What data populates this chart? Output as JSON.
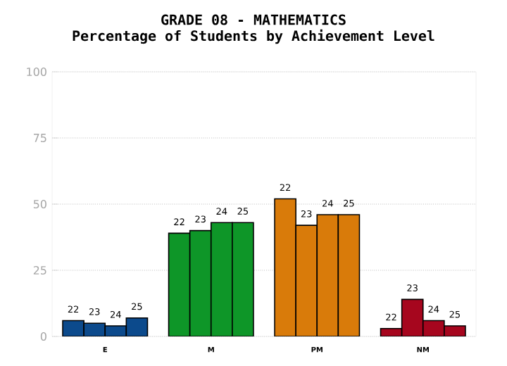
{
  "chart_data": {
    "type": "bar",
    "title": "GRADE 08 - MATHEMATICS",
    "subtitle": "Percentage of Students by Achievement Level",
    "categories": [
      "E",
      "M",
      "PM",
      "NM"
    ],
    "series": [
      {
        "name": "22",
        "colors": [
          "#0c4a8c",
          "#0e9628",
          "#d97b0a",
          "#a6061e"
        ],
        "values": [
          6,
          39,
          52,
          3
        ]
      },
      {
        "name": "23",
        "colors": [
          "#0c4a8c",
          "#0e9628",
          "#d97b0a",
          "#a6061e"
        ],
        "values": [
          5,
          40,
          42,
          14
        ]
      },
      {
        "name": "24",
        "colors": [
          "#0c4a8c",
          "#0e9628",
          "#d97b0a",
          "#a6061e"
        ],
        "values": [
          4,
          43,
          46,
          6
        ]
      },
      {
        "name": "25",
        "colors": [
          "#0c4a8c",
          "#0e9628",
          "#d97b0a",
          "#a6061e"
        ],
        "values": [
          7,
          43,
          46,
          4
        ]
      }
    ],
    "ylim": [
      0,
      100
    ],
    "yticks": [
      0,
      25,
      50,
      75,
      100
    ],
    "grid": "y"
  }
}
